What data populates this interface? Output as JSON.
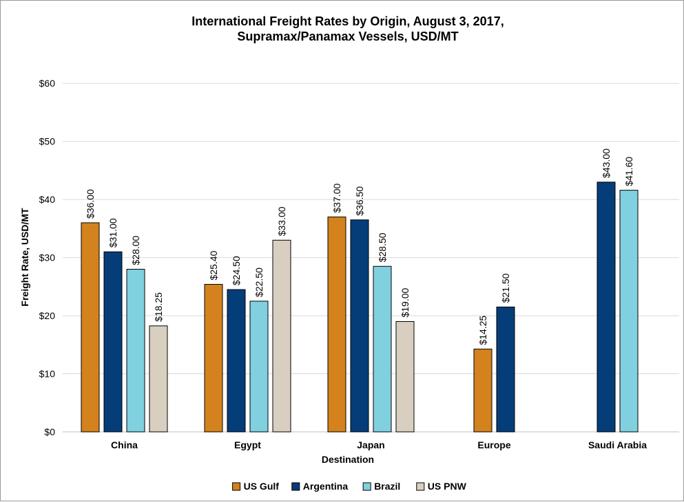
{
  "chart_data": {
    "type": "bar",
    "title": "International Freight Rates by Origin, August 3, 2017,",
    "subtitle": "Supramax/Panamax Vessels, USD/MT",
    "xlabel": "Destination",
    "ylabel": "Freight Rate, USD/MT",
    "categories": [
      "China",
      "Egypt",
      "Japan",
      "Europe",
      "Saudi Arabia"
    ],
    "ylim": [
      0,
      65
    ],
    "yticks": [
      0,
      10,
      20,
      30,
      40,
      50,
      60
    ],
    "ytick_labels": [
      "$0",
      "$10",
      "$20",
      "$30",
      "$40",
      "$50",
      "$60"
    ],
    "grid": true,
    "legend_position": "bottom",
    "series": [
      {
        "name": "US Gulf",
        "color": "#d4821e",
        "values": [
          36.0,
          25.4,
          37.0,
          14.25,
          null
        ],
        "labels": [
          "$36.00",
          "$25.40",
          "$37.00",
          "$14.25",
          null
        ]
      },
      {
        "name": "Argentina",
        "color": "#053d78",
        "values": [
          31.0,
          24.5,
          36.5,
          21.5,
          43.0
        ],
        "labels": [
          "$31.00",
          "$24.50",
          "$36.50",
          "$21.50",
          "$43.00"
        ]
      },
      {
        "name": "Brazil",
        "color": "#80d0e0",
        "values": [
          28.0,
          22.5,
          28.5,
          null,
          41.6
        ],
        "labels": [
          "$28.00",
          "$22.50",
          "$28.50",
          null,
          "$41.60"
        ]
      },
      {
        "name": "US PNW",
        "color": "#d9cfc0",
        "values": [
          18.25,
          33.0,
          19.0,
          null,
          null
        ],
        "labels": [
          "$18.25",
          "$33.00",
          "$19.00",
          null,
          null
        ]
      }
    ]
  }
}
